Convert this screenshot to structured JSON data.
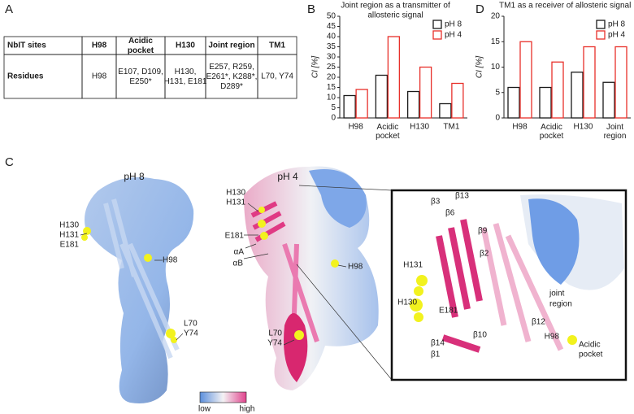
{
  "panels": {
    "a": "A",
    "b": "B",
    "c": "C",
    "d": "D"
  },
  "table": {
    "header": [
      "NbIT sites",
      "H98",
      "Acidic pocket",
      "H130",
      "Joint region",
      "TM1"
    ],
    "rows": [
      [
        "Residues",
        "H98",
        "E107, D109, E250*",
        "H130, H131, E181",
        "E257, R259, E261*, K288*, D289*",
        "L70, Y74"
      ]
    ]
  },
  "chart_data": [
    {
      "type": "bar",
      "title": [
        "Joint region as a transmitter of",
        "allosteric signal"
      ],
      "ylabel": "CI [%]",
      "categories": [
        "H98",
        "Acidic pocket",
        "H130",
        "TM1"
      ],
      "series": [
        {
          "name": "pH 8",
          "color": "#1a1a1a",
          "values": [
            11,
            21,
            13,
            7
          ]
        },
        {
          "name": "pH 4",
          "color": "#e8302a",
          "values": [
            14,
            40,
            25,
            17
          ]
        }
      ],
      "ylim": [
        0,
        50
      ],
      "yticks": [
        0,
        5,
        10,
        15,
        20,
        25,
        30,
        35,
        40,
        45,
        50
      ],
      "legend": "upper right"
    },
    {
      "type": "bar",
      "title": [
        "TM1 as a receiver of allosteric signal"
      ],
      "ylabel": "CI [%]",
      "categories": [
        "H98",
        "Acidic pocket",
        "H130",
        "Joint region"
      ],
      "series": [
        {
          "name": "pH 8",
          "color": "#1a1a1a",
          "values": [
            6,
            6,
            9,
            7
          ]
        },
        {
          "name": "pH 4",
          "color": "#e8302a",
          "values": [
            15,
            11,
            14,
            14
          ]
        }
      ],
      "ylim": [
        0,
        20
      ],
      "yticks": [
        0,
        5,
        10,
        15,
        20
      ],
      "legend": "upper right"
    }
  ],
  "panel_c": {
    "left_title": "pH 8",
    "right_title": "pH 4",
    "left_labels": [
      [
        "H130",
        "H131",
        "E181"
      ],
      [
        "H98"
      ],
      [
        "L70",
        "Y74"
      ]
    ],
    "right_labels": [
      [
        "H130",
        "H131"
      ],
      [
        "E181"
      ],
      [
        "αA"
      ],
      [
        "αB"
      ],
      [
        "H98"
      ],
      [
        "L70",
        "Y74"
      ]
    ],
    "inset_labels": [
      "β3",
      "β6",
      "β13",
      "β9",
      "β2",
      "H131",
      "H130",
      "E181",
      "joint",
      "region",
      "β12",
      "β10",
      "β14",
      "β1",
      "H98",
      "Acidic",
      "pocket"
    ],
    "colorbar": {
      "low": "low",
      "high": "high"
    }
  }
}
